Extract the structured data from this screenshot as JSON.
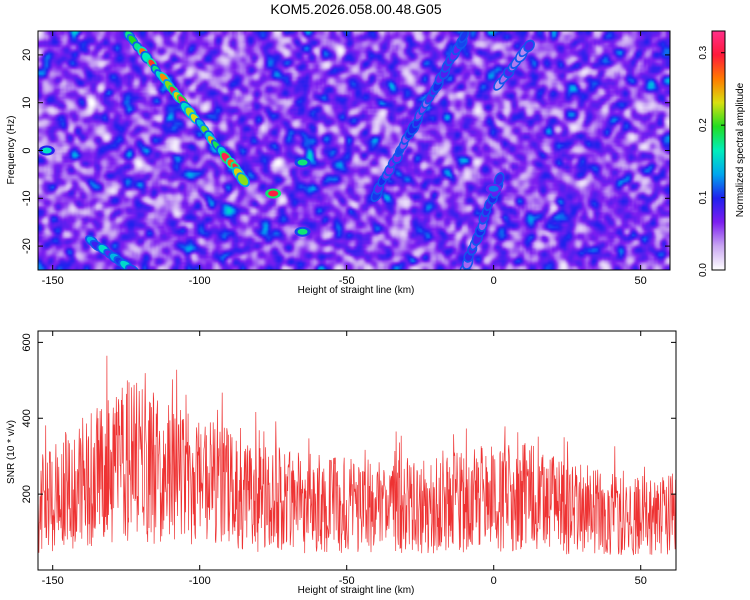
{
  "title": "KOM5.2026.058.00.48.G05",
  "colors": {
    "snr_line": "#ee3333",
    "colormap": [
      "#ffffff",
      "#c9a6f2",
      "#7c1ef0",
      "#2020ee",
      "#00a6ee",
      "#00eebc",
      "#22dd22",
      "#d8e010",
      "#ff7a00",
      "#ff1a3a",
      "#ff2f8a"
    ]
  },
  "chart_data": [
    {
      "type": "heatmap",
      "xlabel": "Height of straight line (km)",
      "ylabel": "Frequency (Hz)",
      "xlim": [
        -155,
        60
      ],
      "ylim": [
        -25,
        25
      ],
      "xticks": [
        -150,
        -100,
        -50,
        0,
        50
      ],
      "yticks": [
        -20,
        -10,
        0,
        10,
        20
      ],
      "colorbar": {
        "label": "Normalized spectral amplitude",
        "range": [
          0,
          0.33
        ],
        "ticks": [
          "0.0",
          "0.1",
          "0.2",
          "0.3"
        ]
      },
      "ridges": [
        {
          "from": [
            -124,
            24
          ],
          "to": [
            -85,
            -6
          ],
          "peak": 0.32
        },
        {
          "from": [
            -137,
            -19
          ],
          "to": [
            -123,
            -25
          ],
          "peak": 0.16
        },
        {
          "from": [
            -40,
            -9
          ],
          "to": [
            -10,
            24
          ],
          "peak": 0.11
        },
        {
          "from": [
            -10,
            -25
          ],
          "to": [
            2,
            -6
          ],
          "peak": 0.1
        },
        {
          "from": [
            2,
            14
          ],
          "to": [
            12,
            22
          ],
          "peak": 0.08
        }
      ],
      "hotspots": [
        {
          "x": -75,
          "y": -9,
          "v": 0.3
        },
        {
          "x": -65,
          "y": -17,
          "v": 0.18
        },
        {
          "x": -65,
          "y": -2.5,
          "v": 0.18
        },
        {
          "x": -152,
          "y": 0,
          "v": 0.16
        },
        {
          "x": 0,
          "y": -8,
          "v": 0.12
        }
      ]
    },
    {
      "type": "line",
      "xlabel": "Height of straight line (km)",
      "ylabel": "SNR (10 * v/v)",
      "xlim": [
        -155,
        62
      ],
      "ylim": [
        0,
        630
      ],
      "xticks": [
        -150,
        -100,
        -50,
        0,
        50
      ],
      "yticks": [
        200,
        400,
        600
      ],
      "series": [
        {
          "profile": [
            {
              "x": -155,
              "y": 175
            },
            {
              "x": -140,
              "y": 230
            },
            {
              "x": -130,
              "y": 265
            },
            {
              "x": -124,
              "y": 290
            },
            {
              "x": -110,
              "y": 265
            },
            {
              "x": -95,
              "y": 225
            },
            {
              "x": -80,
              "y": 190
            },
            {
              "x": -60,
              "y": 175
            },
            {
              "x": -40,
              "y": 165
            },
            {
              "x": -20,
              "y": 175
            },
            {
              "x": 0,
              "y": 190
            },
            {
              "x": 10,
              "y": 195
            },
            {
              "x": 25,
              "y": 165
            },
            {
              "x": 40,
              "y": 150
            },
            {
              "x": 55,
              "y": 140
            },
            {
              "x": 62,
              "y": 150
            }
          ]
        }
      ]
    }
  ]
}
